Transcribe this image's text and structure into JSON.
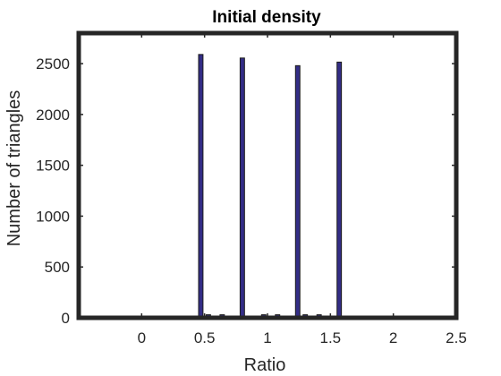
{
  "chart_data": {
    "type": "bar",
    "title": "Initial density",
    "xlabel": "Ratio",
    "ylabel": "Number of triangles",
    "xlim": [
      -0.5,
      2.5
    ],
    "ylim": [
      0,
      2800
    ],
    "xticks": [
      0,
      0.5,
      1,
      1.5,
      2,
      2.5
    ],
    "xtick_labels": [
      "0",
      "0.5",
      "1",
      "1.5",
      "2",
      "2.5"
    ],
    "yticks": [
      0,
      500,
      1000,
      1500,
      2000,
      2500
    ],
    "ytick_labels": [
      "0",
      "500",
      "1000",
      "1500",
      "2000",
      "2500"
    ],
    "bar_width": 0.035,
    "x": [
      0.42,
      0.47,
      0.53,
      0.58,
      0.64,
      0.69,
      0.75,
      0.8,
      0.86,
      0.91,
      0.97,
      1.02,
      1.08,
      1.13,
      1.19,
      1.24,
      1.3,
      1.35,
      1.41,
      1.46,
      1.52,
      1.57
    ],
    "values": [
      0,
      2590,
      30,
      0,
      30,
      0,
      0,
      2555,
      0,
      0,
      30,
      0,
      30,
      0,
      0,
      2480,
      30,
      0,
      30,
      0,
      0,
      2515
    ],
    "bar_color": "#332d86",
    "bar_edge_color": "#1a1a1a",
    "grid": false,
    "box": true,
    "legend": "none"
  }
}
